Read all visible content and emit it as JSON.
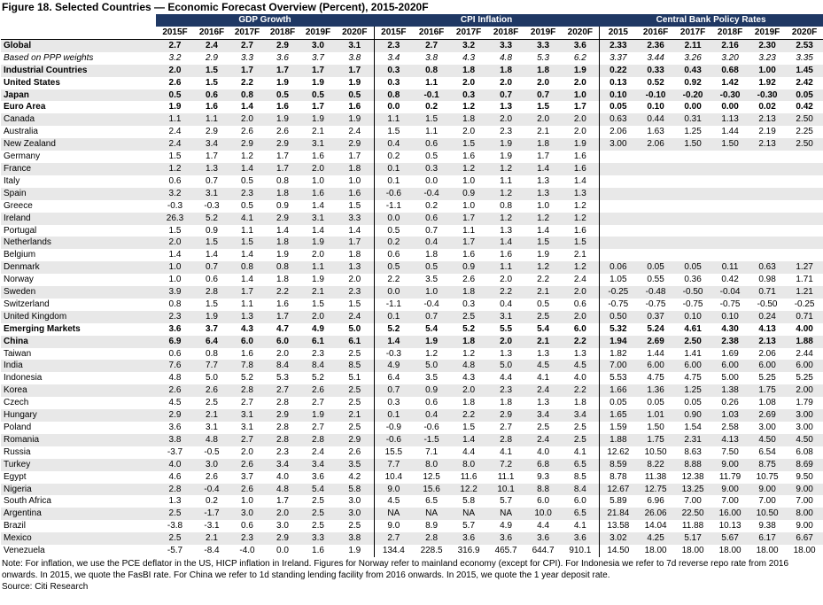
{
  "title": "Figure 18. Selected Countries — Economic Forecast Overview (Percent), 2015-2020F",
  "groups": [
    "GDP Growth",
    "CPI Inflation",
    "Central Bank Policy Rates"
  ],
  "columns": {
    "gdp": [
      "2015F",
      "2016F",
      "2017F",
      "2018F",
      "2019F",
      "2020F"
    ],
    "cpi": [
      "2015F",
      "2016F",
      "2017F",
      "2018F",
      "2019F",
      "2020F"
    ],
    "cb": [
      "2015",
      "2016F",
      "2017F",
      "2018F",
      "2019F",
      "2020F"
    ]
  },
  "rows": [
    {
      "label": "Global",
      "style": "bold",
      "gdp": [
        "2.7",
        "2.4",
        "2.7",
        "2.9",
        "3.0",
        "3.1"
      ],
      "cpi": [
        "2.3",
        "2.7",
        "3.2",
        "3.3",
        "3.3",
        "3.6"
      ],
      "cb": [
        "2.33",
        "2.36",
        "2.11",
        "2.16",
        "2.30",
        "2.53"
      ]
    },
    {
      "label": "Based on PPP weights",
      "style": "italic",
      "gdp": [
        "3.2",
        "2.9",
        "3.3",
        "3.6",
        "3.7",
        "3.8"
      ],
      "cpi": [
        "3.4",
        "3.8",
        "4.3",
        "4.8",
        "5.3",
        "6.2"
      ],
      "cb": [
        "3.37",
        "3.44",
        "3.26",
        "3.20",
        "3.23",
        "3.35"
      ]
    },
    {
      "label": "Industrial Countries",
      "style": "bold",
      "gdp": [
        "2.0",
        "1.5",
        "1.7",
        "1.7",
        "1.7",
        "1.7"
      ],
      "cpi": [
        "0.3",
        "0.8",
        "1.8",
        "1.8",
        "1.8",
        "1.9"
      ],
      "cb": [
        "0.22",
        "0.33",
        "0.43",
        "0.68",
        "1.00",
        "1.45"
      ]
    },
    {
      "label": "United States",
      "style": "bold",
      "gdp": [
        "2.6",
        "1.5",
        "2.2",
        "1.9",
        "1.9",
        "1.9"
      ],
      "cpi": [
        "0.3",
        "1.1",
        "2.0",
        "2.0",
        "2.0",
        "2.0"
      ],
      "cb": [
        "0.13",
        "0.52",
        "0.92",
        "1.42",
        "1.92",
        "2.42"
      ]
    },
    {
      "label": "Japan",
      "style": "bold",
      "gdp": [
        "0.5",
        "0.6",
        "0.8",
        "0.5",
        "0.5",
        "0.5"
      ],
      "cpi": [
        "0.8",
        "-0.1",
        "0.3",
        "0.7",
        "0.7",
        "1.0"
      ],
      "cb": [
        "0.10",
        "-0.10",
        "-0.20",
        "-0.30",
        "-0.30",
        "0.05"
      ]
    },
    {
      "label": "Euro Area",
      "style": "bold",
      "gdp": [
        "1.9",
        "1.6",
        "1.4",
        "1.6",
        "1.7",
        "1.6"
      ],
      "cpi": [
        "0.0",
        "0.2",
        "1.2",
        "1.3",
        "1.5",
        "1.7"
      ],
      "cb": [
        "0.05",
        "0.10",
        "0.00",
        "0.00",
        "0.02",
        "0.42"
      ]
    },
    {
      "label": "Canada",
      "style": "",
      "gdp": [
        "1.1",
        "1.1",
        "2.0",
        "1.9",
        "1.9",
        "1.9"
      ],
      "cpi": [
        "1.1",
        "1.5",
        "1.8",
        "2.0",
        "2.0",
        "2.0"
      ],
      "cb": [
        "0.63",
        "0.44",
        "0.31",
        "1.13",
        "2.13",
        "2.50"
      ]
    },
    {
      "label": "Australia",
      "style": "",
      "gdp": [
        "2.4",
        "2.9",
        "2.6",
        "2.6",
        "2.1",
        "2.4"
      ],
      "cpi": [
        "1.5",
        "1.1",
        "2.0",
        "2.3",
        "2.1",
        "2.0"
      ],
      "cb": [
        "2.06",
        "1.63",
        "1.25",
        "1.44",
        "2.19",
        "2.25"
      ]
    },
    {
      "label": "New Zealand",
      "style": "",
      "gdp": [
        "2.4",
        "3.4",
        "2.9",
        "2.9",
        "3.1",
        "2.9"
      ],
      "cpi": [
        "0.4",
        "0.6",
        "1.5",
        "1.9",
        "1.8",
        "1.9"
      ],
      "cb": [
        "3.00",
        "2.06",
        "1.50",
        "1.50",
        "2.13",
        "2.50"
      ]
    },
    {
      "label": "Germany",
      "style": "",
      "gdp": [
        "1.5",
        "1.7",
        "1.2",
        "1.7",
        "1.6",
        "1.7"
      ],
      "cpi": [
        "0.2",
        "0.5",
        "1.6",
        "1.9",
        "1.7",
        "1.6"
      ],
      "cb": [
        "",
        "",
        "",
        "",
        "",
        ""
      ]
    },
    {
      "label": "France",
      "style": "",
      "gdp": [
        "1.2",
        "1.3",
        "1.4",
        "1.7",
        "2.0",
        "1.8"
      ],
      "cpi": [
        "0.1",
        "0.3",
        "1.2",
        "1.2",
        "1.4",
        "1.6"
      ],
      "cb": [
        "",
        "",
        "",
        "",
        "",
        ""
      ]
    },
    {
      "label": "Italy",
      "style": "",
      "gdp": [
        "0.6",
        "0.7",
        "0.5",
        "0.8",
        "1.0",
        "1.0"
      ],
      "cpi": [
        "0.1",
        "0.0",
        "1.0",
        "1.1",
        "1.3",
        "1.4"
      ],
      "cb": [
        "",
        "",
        "",
        "",
        "",
        ""
      ]
    },
    {
      "label": "Spain",
      "style": "",
      "gdp": [
        "3.2",
        "3.1",
        "2.3",
        "1.8",
        "1.6",
        "1.6"
      ],
      "cpi": [
        "-0.6",
        "-0.4",
        "0.9",
        "1.2",
        "1.3",
        "1.3"
      ],
      "cb": [
        "",
        "",
        "",
        "",
        "",
        ""
      ]
    },
    {
      "label": "Greece",
      "style": "",
      "gdp": [
        "-0.3",
        "-0.3",
        "0.5",
        "0.9",
        "1.4",
        "1.5"
      ],
      "cpi": [
        "-1.1",
        "0.2",
        "1.0",
        "0.8",
        "1.0",
        "1.2"
      ],
      "cb": [
        "",
        "",
        "",
        "",
        "",
        ""
      ]
    },
    {
      "label": "Ireland",
      "style": "",
      "gdp": [
        "26.3",
        "5.2",
        "4.1",
        "2.9",
        "3.1",
        "3.3"
      ],
      "cpi": [
        "0.0",
        "0.6",
        "1.7",
        "1.2",
        "1.2",
        "1.2"
      ],
      "cb": [
        "",
        "",
        "",
        "",
        "",
        ""
      ]
    },
    {
      "label": "Portugal",
      "style": "",
      "gdp": [
        "1.5",
        "0.9",
        "1.1",
        "1.4",
        "1.4",
        "1.4"
      ],
      "cpi": [
        "0.5",
        "0.7",
        "1.1",
        "1.3",
        "1.4",
        "1.6"
      ],
      "cb": [
        "",
        "",
        "",
        "",
        "",
        ""
      ]
    },
    {
      "label": "Netherlands",
      "style": "",
      "gdp": [
        "2.0",
        "1.5",
        "1.5",
        "1.8",
        "1.9",
        "1.7"
      ],
      "cpi": [
        "0.2",
        "0.4",
        "1.7",
        "1.4",
        "1.5",
        "1.5"
      ],
      "cb": [
        "",
        "",
        "",
        "",
        "",
        ""
      ]
    },
    {
      "label": "Belgium",
      "style": "",
      "gdp": [
        "1.4",
        "1.4",
        "1.4",
        "1.9",
        "2.0",
        "1.8"
      ],
      "cpi": [
        "0.6",
        "1.8",
        "1.6",
        "1.6",
        "1.9",
        "2.1"
      ],
      "cb": [
        "",
        "",
        "",
        "",
        "",
        ""
      ]
    },
    {
      "label": "Denmark",
      "style": "",
      "gdp": [
        "1.0",
        "0.7",
        "0.8",
        "0.8",
        "1.1",
        "1.3"
      ],
      "cpi": [
        "0.5",
        "0.5",
        "0.9",
        "1.1",
        "1.2",
        "1.2"
      ],
      "cb": [
        "0.06",
        "0.05",
        "0.05",
        "0.11",
        "0.63",
        "1.27"
      ]
    },
    {
      "label": "Norway",
      "style": "",
      "gdp": [
        "1.0",
        "0.6",
        "1.4",
        "1.8",
        "1.9",
        "2.0"
      ],
      "cpi": [
        "2.2",
        "3.5",
        "2.6",
        "2.0",
        "2.2",
        "2.4"
      ],
      "cb": [
        "1.05",
        "0.55",
        "0.36",
        "0.42",
        "0.98",
        "1.71"
      ]
    },
    {
      "label": "Sweden",
      "style": "",
      "gdp": [
        "3.9",
        "2.8",
        "1.7",
        "2.2",
        "2.1",
        "2.3"
      ],
      "cpi": [
        "0.0",
        "1.0",
        "1.8",
        "2.2",
        "2.1",
        "2.0"
      ],
      "cb": [
        "-0.25",
        "-0.48",
        "-0.50",
        "-0.04",
        "0.71",
        "1.21"
      ]
    },
    {
      "label": "Switzerland",
      "style": "",
      "gdp": [
        "0.8",
        "1.5",
        "1.1",
        "1.6",
        "1.5",
        "1.5"
      ],
      "cpi": [
        "-1.1",
        "-0.4",
        "0.3",
        "0.4",
        "0.5",
        "0.6"
      ],
      "cb": [
        "-0.75",
        "-0.75",
        "-0.75",
        "-0.75",
        "-0.50",
        "-0.25"
      ]
    },
    {
      "label": "United Kingdom",
      "style": "",
      "gdp": [
        "2.3",
        "1.9",
        "1.3",
        "1.7",
        "2.0",
        "2.4"
      ],
      "cpi": [
        "0.1",
        "0.7",
        "2.5",
        "3.1",
        "2.5",
        "2.0"
      ],
      "cb": [
        "0.50",
        "0.37",
        "0.10",
        "0.10",
        "0.24",
        "0.71"
      ]
    },
    {
      "label": "Emerging Markets",
      "style": "bold",
      "gdp": [
        "3.6",
        "3.7",
        "4.3",
        "4.7",
        "4.9",
        "5.0"
      ],
      "cpi": [
        "5.2",
        "5.4",
        "5.2",
        "5.5",
        "5.4",
        "6.0"
      ],
      "cb": [
        "5.32",
        "5.24",
        "4.61",
        "4.30",
        "4.13",
        "4.00"
      ]
    },
    {
      "label": "China",
      "style": "bold",
      "gdp": [
        "6.9",
        "6.4",
        "6.0",
        "6.0",
        "6.1",
        "6.1"
      ],
      "cpi": [
        "1.4",
        "1.9",
        "1.8",
        "2.0",
        "2.1",
        "2.2"
      ],
      "cb": [
        "1.94",
        "2.69",
        "2.50",
        "2.38",
        "2.13",
        "1.88"
      ]
    },
    {
      "label": "Taiwan",
      "style": "",
      "gdp": [
        "0.6",
        "0.8",
        "1.6",
        "2.0",
        "2.3",
        "2.5"
      ],
      "cpi": [
        "-0.3",
        "1.2",
        "1.2",
        "1.3",
        "1.3",
        "1.3"
      ],
      "cb": [
        "1.82",
        "1.44",
        "1.41",
        "1.69",
        "2.06",
        "2.44"
      ]
    },
    {
      "label": "India",
      "style": "",
      "gdp": [
        "7.6",
        "7.7",
        "7.8",
        "8.4",
        "8.4",
        "8.5"
      ],
      "cpi": [
        "4.9",
        "5.0",
        "4.8",
        "5.0",
        "4.5",
        "4.5"
      ],
      "cb": [
        "7.00",
        "6.00",
        "6.00",
        "6.00",
        "6.00",
        "6.00"
      ]
    },
    {
      "label": "Indonesia",
      "style": "",
      "gdp": [
        "4.8",
        "5.0",
        "5.2",
        "5.3",
        "5.2",
        "5.1"
      ],
      "cpi": [
        "6.4",
        "3.5",
        "4.3",
        "4.4",
        "4.1",
        "4.0"
      ],
      "cb": [
        "5.53",
        "4.75",
        "4.75",
        "5.00",
        "5.25",
        "5.25"
      ]
    },
    {
      "label": "Korea",
      "style": "",
      "gdp": [
        "2.6",
        "2.6",
        "2.8",
        "2.7",
        "2.6",
        "2.5"
      ],
      "cpi": [
        "0.7",
        "0.9",
        "2.0",
        "2.3",
        "2.4",
        "2.2"
      ],
      "cb": [
        "1.66",
        "1.36",
        "1.25",
        "1.38",
        "1.75",
        "2.00"
      ]
    },
    {
      "label": "Czech",
      "style": "",
      "gdp": [
        "4.5",
        "2.5",
        "2.7",
        "2.8",
        "2.7",
        "2.5"
      ],
      "cpi": [
        "0.3",
        "0.6",
        "1.8",
        "1.8",
        "1.3",
        "1.8"
      ],
      "cb": [
        "0.05",
        "0.05",
        "0.05",
        "0.26",
        "1.08",
        "1.79"
      ]
    },
    {
      "label": "Hungary",
      "style": "",
      "gdp": [
        "2.9",
        "2.1",
        "3.1",
        "2.9",
        "1.9",
        "2.1"
      ],
      "cpi": [
        "0.1",
        "0.4",
        "2.2",
        "2.9",
        "3.4",
        "3.4"
      ],
      "cb": [
        "1.65",
        "1.01",
        "0.90",
        "1.03",
        "2.69",
        "3.00"
      ]
    },
    {
      "label": "Poland",
      "style": "",
      "gdp": [
        "3.6",
        "3.1",
        "3.1",
        "2.8",
        "2.7",
        "2.5"
      ],
      "cpi": [
        "-0.9",
        "-0.6",
        "1.5",
        "2.7",
        "2.5",
        "2.5"
      ],
      "cb": [
        "1.59",
        "1.50",
        "1.54",
        "2.58",
        "3.00",
        "3.00"
      ]
    },
    {
      "label": "Romania",
      "style": "",
      "gdp": [
        "3.8",
        "4.8",
        "2.7",
        "2.8",
        "2.8",
        "2.9"
      ],
      "cpi": [
        "-0.6",
        "-1.5",
        "1.4",
        "2.8",
        "2.4",
        "2.5"
      ],
      "cb": [
        "1.88",
        "1.75",
        "2.31",
        "4.13",
        "4.50",
        "4.50"
      ]
    },
    {
      "label": "Russia",
      "style": "",
      "gdp": [
        "-3.7",
        "-0.5",
        "2.0",
        "2.3",
        "2.4",
        "2.6"
      ],
      "cpi": [
        "15.5",
        "7.1",
        "4.4",
        "4.1",
        "4.0",
        "4.1"
      ],
      "cb": [
        "12.62",
        "10.50",
        "8.63",
        "7.50",
        "6.54",
        "6.08"
      ]
    },
    {
      "label": "Turkey",
      "style": "",
      "gdp": [
        "4.0",
        "3.0",
        "2.6",
        "3.4",
        "3.4",
        "3.5"
      ],
      "cpi": [
        "7.7",
        "8.0",
        "8.0",
        "7.2",
        "6.8",
        "6.5"
      ],
      "cb": [
        "8.59",
        "8.22",
        "8.88",
        "9.00",
        "8.75",
        "8.69"
      ]
    },
    {
      "label": "Egypt",
      "style": "",
      "gdp": [
        "4.6",
        "2.6",
        "3.7",
        "4.0",
        "3.6",
        "4.2"
      ],
      "cpi": [
        "10.4",
        "12.5",
        "11.6",
        "11.1",
        "9.3",
        "8.5"
      ],
      "cb": [
        "8.78",
        "11.38",
        "12.38",
        "11.79",
        "10.75",
        "9.50"
      ]
    },
    {
      "label": "Nigeria",
      "style": "",
      "gdp": [
        "2.8",
        "-0.4",
        "2.6",
        "4.8",
        "5.4",
        "5.8"
      ],
      "cpi": [
        "9.0",
        "15.6",
        "12.2",
        "10.1",
        "8.8",
        "8.4"
      ],
      "cb": [
        "12.67",
        "12.75",
        "13.25",
        "9.00",
        "9.00",
        "9.00"
      ]
    },
    {
      "label": "South Africa",
      "style": "",
      "gdp": [
        "1.3",
        "0.2",
        "1.0",
        "1.7",
        "2.5",
        "3.0"
      ],
      "cpi": [
        "4.5",
        "6.5",
        "5.8",
        "5.7",
        "6.0",
        "6.0"
      ],
      "cb": [
        "5.89",
        "6.96",
        "7.00",
        "7.00",
        "7.00",
        "7.00"
      ]
    },
    {
      "label": "Argentina",
      "style": "",
      "gdp": [
        "2.5",
        "-1.7",
        "3.0",
        "2.0",
        "2.5",
        "3.0"
      ],
      "cpi": [
        "NA",
        "NA",
        "NA",
        "NA",
        "10.0",
        "6.5"
      ],
      "cb": [
        "21.84",
        "26.06",
        "22.50",
        "16.00",
        "10.50",
        "8.00"
      ]
    },
    {
      "label": "Brazil",
      "style": "",
      "gdp": [
        "-3.8",
        "-3.1",
        "0.6",
        "3.0",
        "2.5",
        "2.5"
      ],
      "cpi": [
        "9.0",
        "8.9",
        "5.7",
        "4.9",
        "4.4",
        "4.1"
      ],
      "cb": [
        "13.58",
        "14.04",
        "11.88",
        "10.13",
        "9.38",
        "9.00"
      ]
    },
    {
      "label": "Mexico",
      "style": "",
      "gdp": [
        "2.5",
        "2.1",
        "2.3",
        "2.9",
        "3.3",
        "3.8"
      ],
      "cpi": [
        "2.7",
        "2.8",
        "3.6",
        "3.6",
        "3.6",
        "3.6"
      ],
      "cb": [
        "3.02",
        "4.25",
        "5.17",
        "5.67",
        "6.17",
        "6.67"
      ]
    },
    {
      "label": "Venezuela",
      "style": "",
      "gdp": [
        "-5.7",
        "-8.4",
        "-4.0",
        "0.0",
        "1.6",
        "1.9"
      ],
      "cpi": [
        "134.4",
        "228.5",
        "316.9",
        "465.7",
        "644.7",
        "910.1"
      ],
      "cb": [
        "14.50",
        "18.00",
        "18.00",
        "18.00",
        "18.00",
        "18.00"
      ]
    }
  ],
  "footnote": "Note: For inflation, we use the PCE deflator in the US, HICP inflation in Ireland. Figures for Norway refer to mainland economy (except for CPI). For Indonesia we refer to 7d reverse repo rate from 2016 onwards. In 2015, we quote the FasBI rate. For China we refer to 1d standing lending facility from 2016 onwards. In 2015, we quote the 1 year deposit rate.",
  "source": "Source: Citi Research",
  "colors": {
    "header_bg": "#1f3864",
    "stripe": "#e8e8e8"
  }
}
